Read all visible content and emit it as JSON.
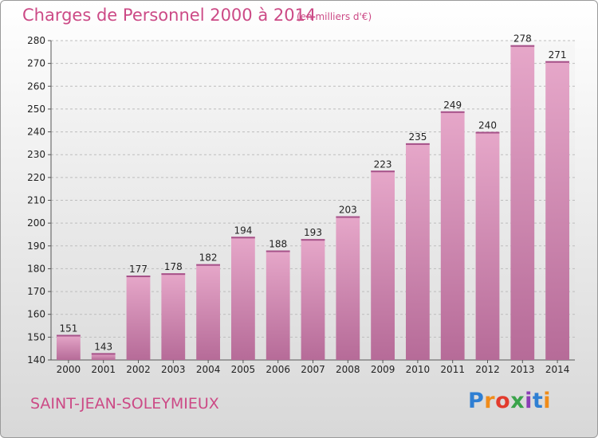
{
  "title": "Charges de Personnel 2000 à 2014",
  "subtitle": "(en milliers d'€)",
  "commune": "SAINT-JEAN-SOLEYMIEUX",
  "logo": {
    "letters": [
      "P",
      "r",
      "o",
      "x",
      "i",
      "t",
      "i"
    ],
    "colors": [
      "#2f7fd3",
      "#f08c1a",
      "#e23b2d",
      "#3aa34a",
      "#8a3fb5",
      "#2f7fd3",
      "#f08c1a"
    ]
  },
  "colors": {
    "accent": "#cc4a86",
    "bar_top": "#e6a7c9",
    "bar_bottom": "#b66b98"
  },
  "chart_data": {
    "type": "bar",
    "title": "Charges de Personnel 2000 à 2014",
    "subtitle": "(en milliers d'€)",
    "xlabel": "",
    "ylabel": "",
    "categories": [
      "2000",
      "2001",
      "2002",
      "2003",
      "2004",
      "2005",
      "2006",
      "2007",
      "2008",
      "2009",
      "2010",
      "2011",
      "2012",
      "2013",
      "2014"
    ],
    "values": [
      151,
      143,
      177,
      178,
      182,
      194,
      188,
      193,
      203,
      223,
      235,
      249,
      240,
      278,
      271
    ],
    "ylim": [
      140,
      280
    ],
    "yticks": [
      140,
      150,
      160,
      170,
      180,
      190,
      200,
      210,
      220,
      230,
      240,
      250,
      260,
      270,
      280
    ],
    "grid": true
  }
}
